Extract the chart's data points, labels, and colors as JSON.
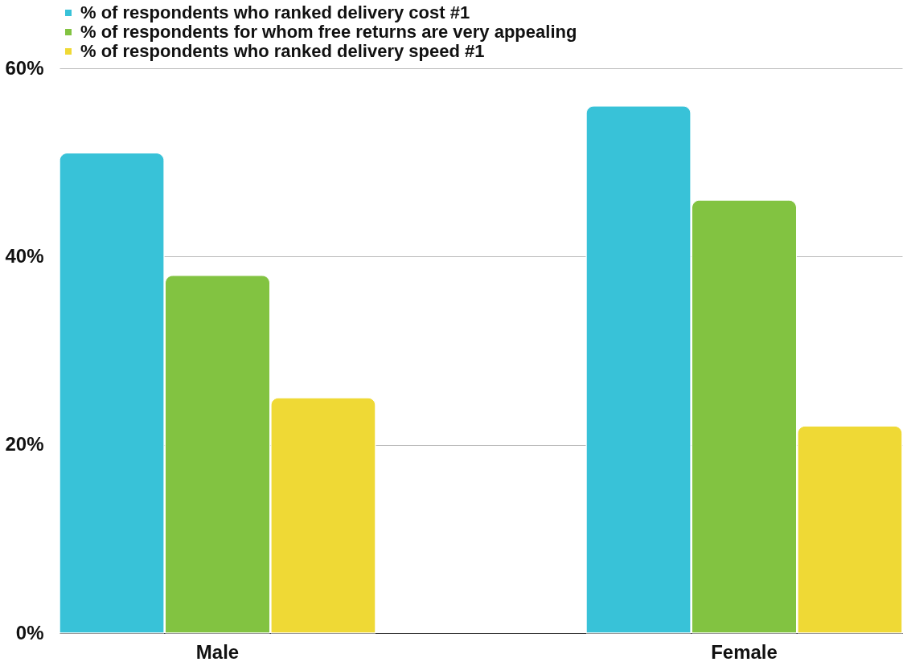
{
  "chart_data": {
    "type": "bar",
    "categories": [
      "Male",
      "Female"
    ],
    "series": [
      {
        "name": "% of respondents who ranked delivery cost #1",
        "color": "#38c2d8",
        "values": [
          51,
          56
        ]
      },
      {
        "name": "% of respondents for whom free returns are very appealing",
        "color": "#82c341",
        "values": [
          38,
          46
        ]
      },
      {
        "name": "% of respondents who ranked delivery speed #1",
        "color": "#efd935",
        "values": [
          25,
          22
        ]
      }
    ],
    "ylim": [
      0,
      60
    ],
    "yticks": [
      {
        "value": 0,
        "label": "0%"
      },
      {
        "value": 20,
        "label": "20%"
      },
      {
        "value": 40,
        "label": "40%"
      },
      {
        "value": 60,
        "label": "60%"
      }
    ],
    "grid": "y",
    "legend": "top"
  }
}
